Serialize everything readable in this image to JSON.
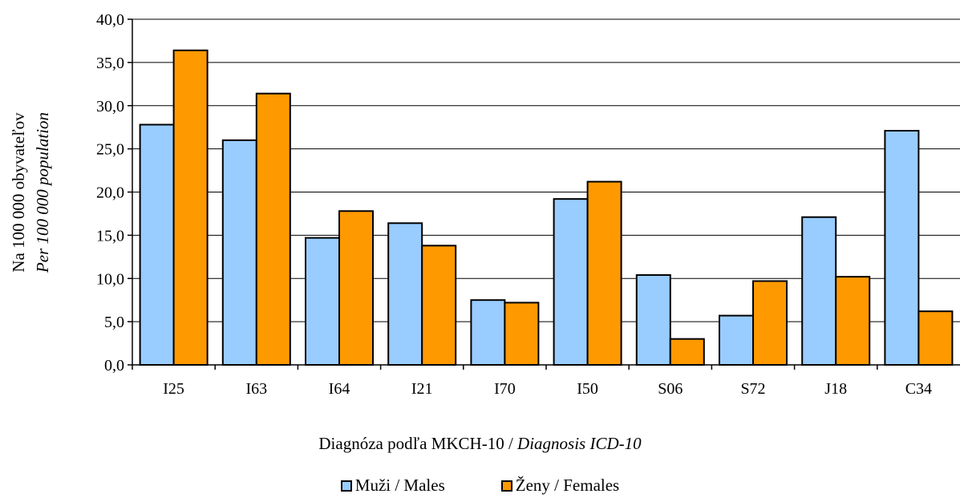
{
  "chart_data": {
    "type": "bar",
    "categories": [
      "I25",
      "I63",
      "I64",
      "I21",
      "I70",
      "I50",
      "S06",
      "S72",
      "J18",
      "C34"
    ],
    "series": [
      {
        "name": "Muži / Males",
        "values": [
          27.8,
          26.0,
          14.7,
          16.4,
          7.5,
          19.2,
          10.4,
          5.7,
          17.1,
          27.1
        ],
        "color": "#99ccff"
      },
      {
        "name": "Ženy / Females",
        "values": [
          36.4,
          31.4,
          17.8,
          13.8,
          7.2,
          21.2,
          3.0,
          9.7,
          10.2,
          6.2
        ],
        "color": "#ff9900"
      }
    ],
    "ylim": [
      0,
      40
    ],
    "yticks": [
      "0,0",
      "5,0",
      "10,0",
      "15,0",
      "20,0",
      "25,0",
      "30,0",
      "35,0",
      "40,0"
    ],
    "ylabel_line1": "Na 100 000 obyvateľov",
    "ylabel_line2": "Per 100 000 population",
    "xlabel_plain": "Diagnóza podľa MKCH-10 / ",
    "xlabel_italic": "Diagnosis ICD-10",
    "grid": true,
    "legend_position": "bottom"
  }
}
